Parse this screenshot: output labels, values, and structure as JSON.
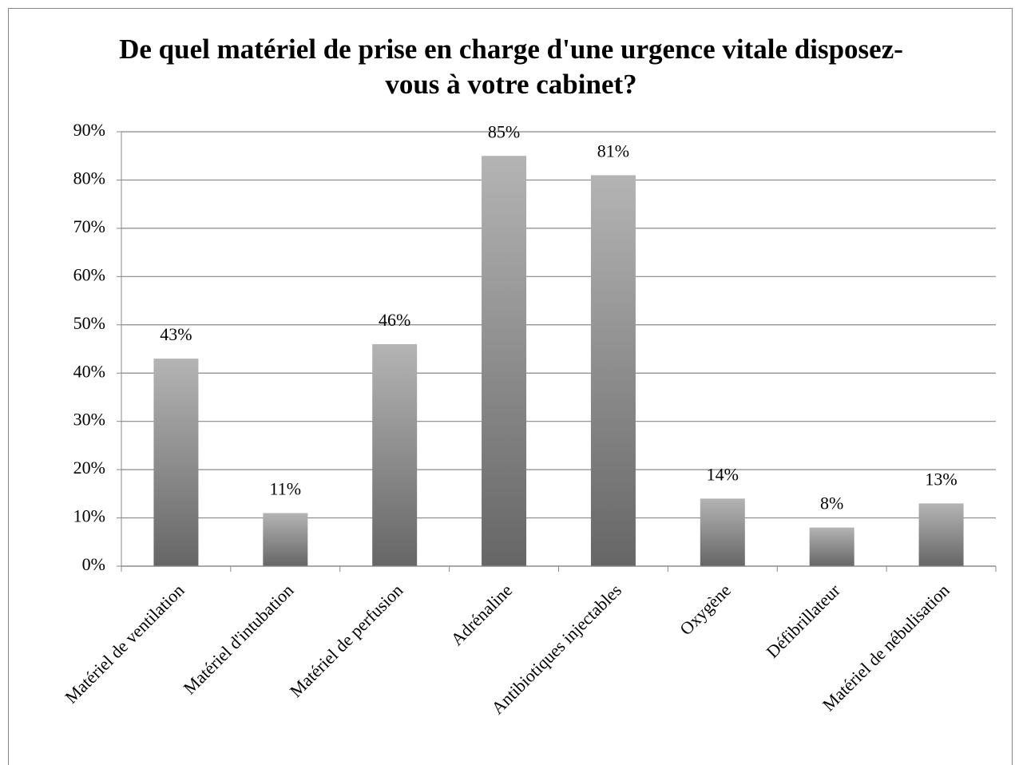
{
  "chart_data": {
    "type": "bar",
    "title": "De quel matériel de prise en charge d'une urgence vitale disposez-vous à votre cabinet?",
    "categories": [
      "Matériel de ventilation",
      "Matériel d'intubation",
      "Matériel de perfusion",
      "Adrénaline",
      "Antibiotiques injectables",
      "Oxygène",
      "Défibrillateur",
      "Matériel de nébulisation"
    ],
    "values": [
      43,
      11,
      46,
      85,
      81,
      14,
      8,
      13
    ],
    "value_labels": [
      "43%",
      "11%",
      "46%",
      "85%",
      "81%",
      "14%",
      "8%",
      "13%"
    ],
    "color": [
      "#b4b4b4",
      "#666666"
    ],
    "ylim": [
      0,
      90
    ],
    "yticks": [
      {
        "value": 0,
        "label": "0%"
      },
      {
        "value": 10,
        "label": "10%"
      },
      {
        "value": 20,
        "label": "20%"
      },
      {
        "value": 30,
        "label": "30%"
      },
      {
        "value": 40,
        "label": "40%"
      },
      {
        "value": 50,
        "label": "50%"
      },
      {
        "value": 60,
        "label": "60%"
      },
      {
        "value": 70,
        "label": "70%"
      },
      {
        "value": 80,
        "label": "80%"
      },
      {
        "value": 90,
        "label": "90%"
      }
    ],
    "grid": true
  }
}
